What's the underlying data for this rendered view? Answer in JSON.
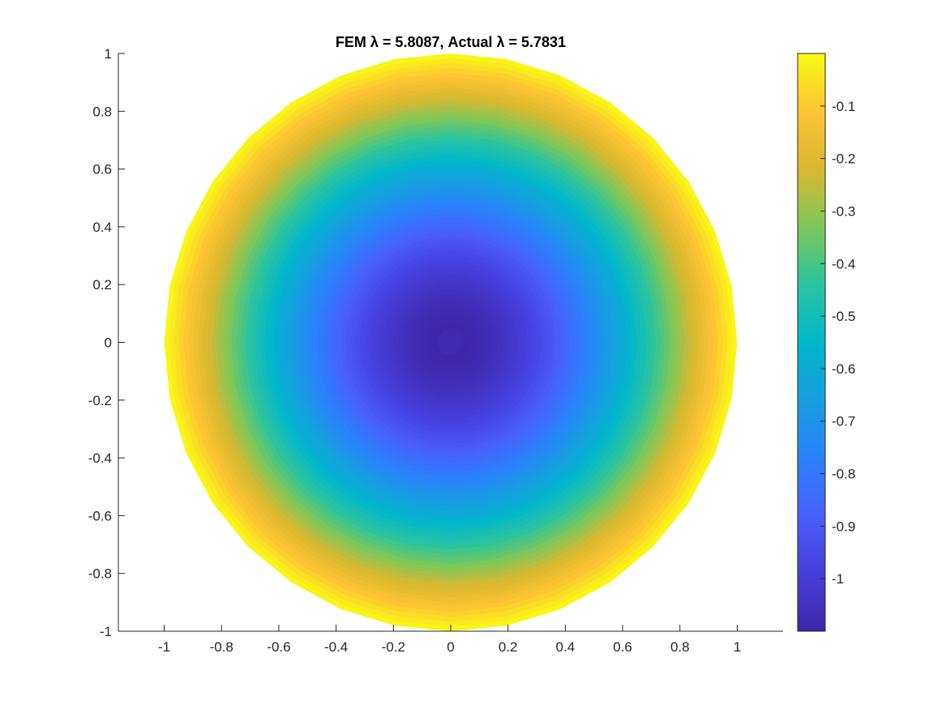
{
  "chart_data": {
    "type": "heatmap",
    "title": "FEM λ = 5.8087, Actual λ = 5.7831",
    "xlabel": "",
    "ylabel": "",
    "xlim": [
      -1.16,
      1.16
    ],
    "ylim": [
      -1,
      1
    ],
    "xticks": [
      -1,
      -0.8,
      -0.6,
      -0.4,
      -0.2,
      0,
      0.2,
      0.4,
      0.6,
      0.8,
      1
    ],
    "yticks": [
      -1,
      -0.8,
      -0.6,
      -0.4,
      -0.2,
      0,
      0.2,
      0.4,
      0.6,
      0.8,
      1
    ],
    "xtick_labels": [
      "-1",
      "-0.8",
      "-0.6",
      "-0.4",
      "-0.2",
      "0",
      "0.2",
      "0.4",
      "0.6",
      "0.8",
      "1"
    ],
    "ytick_labels": [
      "-1",
      "-0.8",
      "-0.6",
      "-0.4",
      "-0.2",
      "0",
      "0.2",
      "0.4",
      "0.6",
      "0.8",
      "1"
    ],
    "grid": false,
    "domain": "unit disk",
    "value_min": -1.1,
    "value_max": 0,
    "field_center": [
      0,
      0
    ],
    "colormap": "parula",
    "colorbar": {
      "placement": "right",
      "range": [
        -1.1,
        0
      ],
      "ticks": [
        -1,
        -0.9,
        -0.8,
        -0.7,
        -0.6,
        -0.5,
        -0.4,
        -0.3,
        -0.2,
        -0.1
      ],
      "tick_labels": [
        "-1",
        "-0.9",
        "-0.8",
        "-0.7",
        "-0.6",
        "-0.5",
        "-0.4",
        "-0.3",
        "-0.2",
        "-0.1"
      ]
    }
  }
}
